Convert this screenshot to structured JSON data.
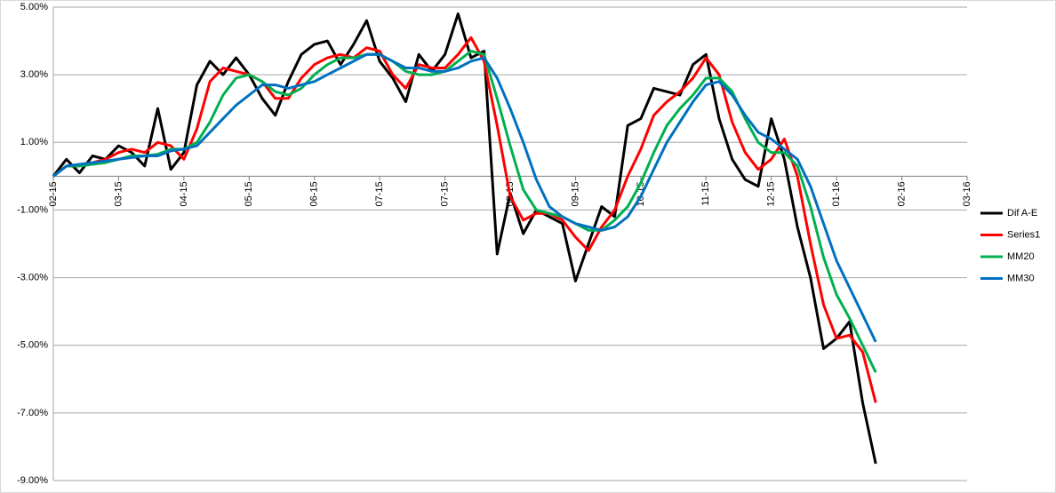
{
  "chart_data": {
    "type": "line",
    "x": [
      0,
      0.2,
      0.4,
      0.6,
      0.8,
      1,
      1.2,
      1.4,
      1.6,
      1.8,
      2,
      2.2,
      2.4,
      2.6,
      2.8,
      3,
      3.2,
      3.4,
      3.6,
      3.8,
      4,
      4.2,
      4.4,
      4.6,
      4.8,
      5,
      5.2,
      5.4,
      5.6,
      5.8,
      6,
      6.2,
      6.4,
      6.6,
      6.8,
      7,
      7.2,
      7.4,
      7.6,
      7.8,
      8,
      8.2,
      8.4,
      8.6,
      8.8,
      9,
      9.2,
      9.4,
      9.6,
      9.8,
      10,
      10.2,
      10.4,
      10.6,
      10.8,
      11,
      11.2,
      11.4,
      11.6,
      11.8,
      12,
      12.2,
      12.4,
      12.6
    ],
    "series": [
      {
        "name": "Dif A-E",
        "color": "#000000",
        "values": [
          0,
          0.5,
          0.1,
          0.6,
          0.5,
          0.9,
          0.7,
          0.3,
          2.0,
          0.2,
          0.7,
          2.7,
          3.4,
          3.0,
          3.5,
          3.0,
          2.3,
          1.8,
          2.8,
          3.6,
          3.9,
          4.0,
          3.3,
          3.9,
          4.6,
          3.4,
          2.9,
          2.2,
          3.6,
          3.1,
          3.6,
          4.8,
          3.5,
          3.7,
          -2.3,
          -0.5,
          -1.7,
          -1.0,
          -1.2,
          -1.4,
          -3.1,
          -2.0,
          -0.9,
          -1.2,
          1.5,
          1.7,
          2.6,
          2.5,
          2.4,
          3.3,
          3.6,
          1.7,
          0.5,
          -0.1,
          -0.3,
          1.7,
          0.5,
          -1.5,
          -3.0,
          -5.1,
          -4.8,
          -4.3,
          -6.7,
          -8.5
        ]
      },
      {
        "name": "Series1",
        "color": "#ff0000",
        "values": [
          0,
          0.3,
          0.3,
          0.4,
          0.5,
          0.7,
          0.8,
          0.7,
          1.0,
          0.9,
          0.5,
          1.4,
          2.8,
          3.2,
          3.1,
          3.0,
          2.8,
          2.3,
          2.3,
          2.9,
          3.3,
          3.5,
          3.6,
          3.5,
          3.8,
          3.7,
          3.0,
          2.6,
          3.3,
          3.2,
          3.2,
          3.6,
          4.1,
          3.4,
          1.5,
          -0.6,
          -1.3,
          -1.1,
          -1.1,
          -1.3,
          -1.8,
          -2.2,
          -1.5,
          -1.0,
          0.0,
          0.8,
          1.8,
          2.2,
          2.5,
          2.9,
          3.5,
          3.0,
          1.6,
          0.7,
          0.2,
          0.5,
          1.1,
          0.0,
          -2.0,
          -3.8,
          -4.8,
          -4.7,
          -5.2,
          -6.7
        ]
      },
      {
        "name": "MM20",
        "color": "#00b050",
        "values": [
          0,
          0.3,
          0.3,
          0.35,
          0.4,
          0.5,
          0.6,
          0.6,
          0.65,
          0.8,
          0.8,
          1.0,
          1.6,
          2.4,
          2.9,
          3.0,
          2.8,
          2.5,
          2.4,
          2.6,
          3.0,
          3.3,
          3.5,
          3.5,
          3.6,
          3.6,
          3.4,
          3.1,
          3.0,
          3.0,
          3.1,
          3.4,
          3.7,
          3.6,
          2.3,
          0.9,
          -0.4,
          -1.0,
          -1.1,
          -1.2,
          -1.4,
          -1.6,
          -1.6,
          -1.3,
          -0.9,
          -0.2,
          0.7,
          1.5,
          2.0,
          2.4,
          2.9,
          2.9,
          2.5,
          1.7,
          1.0,
          0.7,
          0.7,
          0.3,
          -0.9,
          -2.4,
          -3.5,
          -4.2,
          -5.0,
          -5.8
        ]
      },
      {
        "name": "MM30",
        "color": "#0070c0",
        "values": [
          0,
          0.3,
          0.35,
          0.4,
          0.45,
          0.5,
          0.55,
          0.6,
          0.6,
          0.75,
          0.8,
          0.9,
          1.3,
          1.7,
          2.1,
          2.4,
          2.7,
          2.7,
          2.6,
          2.7,
          2.8,
          3.0,
          3.2,
          3.4,
          3.6,
          3.6,
          3.4,
          3.2,
          3.2,
          3.1,
          3.1,
          3.2,
          3.4,
          3.5,
          2.9,
          2.0,
          1.0,
          -0.1,
          -0.9,
          -1.2,
          -1.4,
          -1.5,
          -1.6,
          -1.5,
          -1.2,
          -0.6,
          0.2,
          1.0,
          1.6,
          2.2,
          2.7,
          2.8,
          2.4,
          1.8,
          1.3,
          1.1,
          0.8,
          0.5,
          -0.3,
          -1.4,
          -2.5,
          -3.3,
          -4.1,
          -4.9
        ]
      }
    ],
    "xlim": [
      0,
      14
    ],
    "xticks": [
      {
        "value": 0,
        "label": "02-15"
      },
      {
        "value": 1,
        "label": "03-15"
      },
      {
        "value": 2,
        "label": "04-15"
      },
      {
        "value": 3,
        "label": "05-15"
      },
      {
        "value": 4,
        "label": "06-15"
      },
      {
        "value": 5,
        "label": "07-15"
      },
      {
        "value": 6,
        "label": "07-15"
      },
      {
        "value": 7,
        "label": "08-15"
      },
      {
        "value": 8,
        "label": "09-15"
      },
      {
        "value": 9,
        "label": "10-15"
      },
      {
        "value": 10,
        "label": "11-15"
      },
      {
        "value": 11,
        "label": "12-15"
      },
      {
        "value": 12,
        "label": "01-16"
      },
      {
        "value": 13,
        "label": "02-16"
      },
      {
        "value": 14,
        "label": "03-16"
      }
    ],
    "ylim": [
      -9,
      5
    ],
    "yticks": [
      {
        "value": 5,
        "label": "5.00%"
      },
      {
        "value": 3,
        "label": "3.00%"
      },
      {
        "value": 1,
        "label": "1.00%"
      },
      {
        "value": -1,
        "label": "-1.00%"
      },
      {
        "value": -3,
        "label": "-3.00%"
      },
      {
        "value": -5,
        "label": "-5.00%"
      },
      {
        "value": -7,
        "label": "-7.00%"
      },
      {
        "value": -9,
        "label": "-9.00%"
      }
    ],
    "grid": true,
    "legend": "right"
  }
}
